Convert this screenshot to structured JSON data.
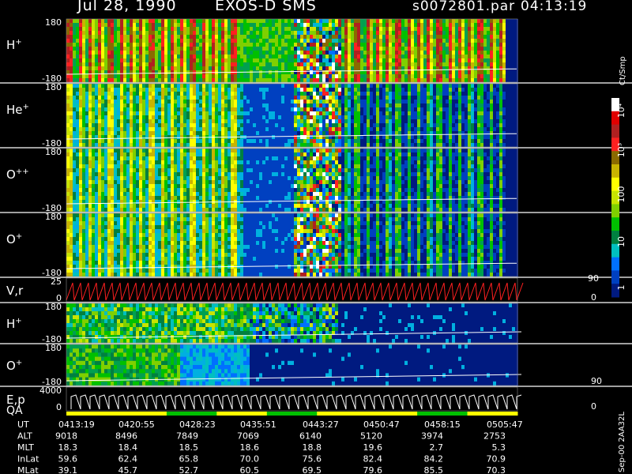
{
  "header": {
    "date": "Jul 28, 1990",
    "instrument": "EXOS-D SMS",
    "file": "s0072801.par",
    "time": "04:13:19"
  },
  "chart_data": {
    "type": "heatmap",
    "panels": [
      {
        "label": "H",
        "superscript": "+",
        "ymin": "-180",
        "ymax": "180",
        "style": "spin-high"
      },
      {
        "label": "He",
        "superscript": "+",
        "ymin": "-180",
        "ymax": "180",
        "style": "spin-mid"
      },
      {
        "label": "O",
        "superscript": "++",
        "ymin": "-180",
        "ymax": "180",
        "style": "spin-mid"
      },
      {
        "label": "O",
        "superscript": "+",
        "ymin": "-180",
        "ymax": "180",
        "style": "spin-mid"
      },
      {
        "label": "V,r",
        "superscript": "",
        "ymin": "0",
        "ymax": "25",
        "style": "sawtooth",
        "right_top": "90",
        "right_bottom": "0"
      },
      {
        "label": "H",
        "superscript": "+",
        "ymin": "-180",
        "ymax": "180",
        "style": "pitch-h"
      },
      {
        "label": "O",
        "superscript": "+",
        "ymin": "-180",
        "ymax": "180",
        "style": "pitch-o",
        "right_bottom": "90"
      },
      {
        "label": "E,p",
        "label2": "QA",
        "superscript": "",
        "ymin": "0",
        "ymax": "4000",
        "style": "energy",
        "right_bottom": "0"
      }
    ],
    "colorbar": {
      "unit": "Ct/Smp",
      "ticks": [
        "10⁴",
        "10³",
        "100",
        "10",
        "1"
      ],
      "colors": [
        "#ffffff",
        "#e00000",
        "#b02020",
        "#ff2020",
        "#8a6a00",
        "#c8b400",
        "#ffff00",
        "#c8e400",
        "#7fd000",
        "#00c000",
        "#008040",
        "#00c0c0",
        "#0070ff",
        "#0040c0",
        "#001a80"
      ]
    },
    "x_axis": {
      "rows": [
        "UT",
        "ALT",
        "MLT",
        "InLat",
        "MLat"
      ],
      "ticks": [
        [
          "0413:19",
          "0420:55",
          "0428:23",
          "0435:51",
          "0443:27",
          "0450:47",
          "0458:15",
          "0505:47"
        ],
        [
          "9018",
          "8496",
          "7849",
          "7069",
          "6140",
          "5120",
          "3974",
          "2753"
        ],
        [
          "18.3",
          "18.4",
          "18.5",
          "18.6",
          "18.8",
          "19.6",
          "2.7",
          "5.3"
        ],
        [
          "59.6",
          "62.4",
          "65.8",
          "70.0",
          "75.6",
          "82.4",
          "84.2",
          "70.9"
        ],
        [
          "39.1",
          "45.7",
          "52.7",
          "60.5",
          "69.5",
          "79.6",
          "85.5",
          "70.3"
        ]
      ]
    }
  },
  "footer": {
    "side_text": "Sep-00 2AA32L"
  }
}
